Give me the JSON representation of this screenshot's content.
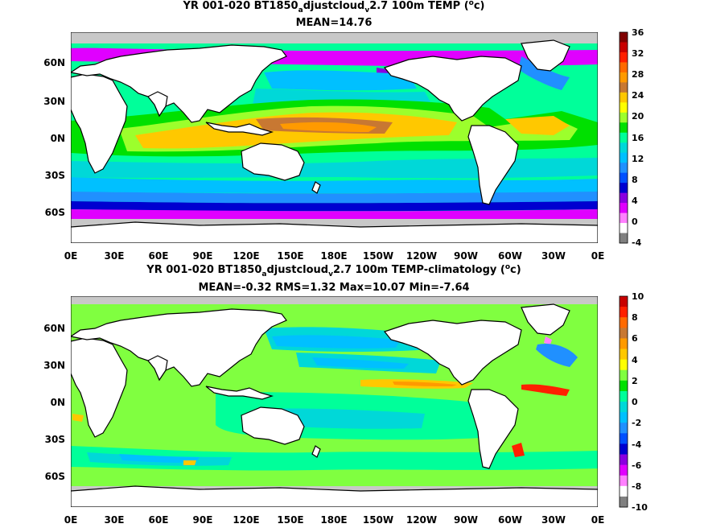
{
  "panels": [
    {
      "title_line1": "YR 001-020 BT1850",
      "title_sub1": "a",
      "title_mid": "djustcloud",
      "title_sub2": "v",
      "title_rest": "2.7 100m TEMP (",
      "title_sup": "o",
      "title_end": "c)",
      "title_line2": "MEAN=14.76",
      "lat_labels": [
        "60N",
        "30N",
        "0N",
        "30S",
        "60S"
      ],
      "lon_labels": [
        "0E",
        "30E",
        "60E",
        "90E",
        "120E",
        "150E",
        "180E",
        "150W",
        "120W",
        "90W",
        "60W",
        "30W",
        "0E"
      ],
      "colorbar_labels": [
        "36",
        "32",
        "28",
        "24",
        "20",
        "16",
        "12",
        "8",
        "4",
        "0",
        "-4"
      ]
    },
    {
      "title_line1": "YR 001-020 BT1850",
      "title_sub1": "a",
      "title_mid": "djustcloud",
      "title_sub2": "v",
      "title_rest": "2.7 100m TEMP-climatology (",
      "title_sup": "o",
      "title_end": "c)",
      "title_line2": "MEAN=-0.32   RMS=1.32   Max=10.07   Min=-7.64",
      "lat_labels": [
        "60N",
        "30N",
        "0N",
        "30S",
        "60S"
      ],
      "lon_labels": [
        "0E",
        "30E",
        "60E",
        "90E",
        "120E",
        "150E",
        "180E",
        "150W",
        "120W",
        "90W",
        "60W",
        "30W",
        "0E"
      ],
      "colorbar_labels": [
        "10",
        "8",
        "6",
        "4",
        "2",
        "0",
        "-2",
        "-4",
        "-6",
        "-8",
        "-10"
      ]
    }
  ],
  "colors": {
    "land": "#ffffff",
    "missing": "#c8c8c8",
    "colorbar_top": [
      "#7f0000",
      "#c80000",
      "#ff2000",
      "#ff6a00",
      "#ff9a00",
      "#c87832",
      "#ffc800",
      "#ffff00",
      "#9cff2c",
      "#00e000",
      "#00ff9a",
      "#00d8d8",
      "#00c0ff",
      "#2090ff",
      "#0050ff",
      "#0000d0",
      "#8a00e0",
      "#e000ff",
      "#ff80ff",
      "#ffffff",
      "#808080"
    ],
    "colorbar_bottom": [
      "#c80000",
      "#ff2000",
      "#ff6a00",
      "#c87832",
      "#ff9a00",
      "#ffc800",
      "#ffff00",
      "#80ff40",
      "#00e000",
      "#00ff9a",
      "#00d8d8",
      "#00c0ff",
      "#2090ff",
      "#0050ff",
      "#0000d0",
      "#8a00e0",
      "#e000ff",
      "#ff80ff",
      "#ffffff",
      "#808080"
    ]
  }
}
